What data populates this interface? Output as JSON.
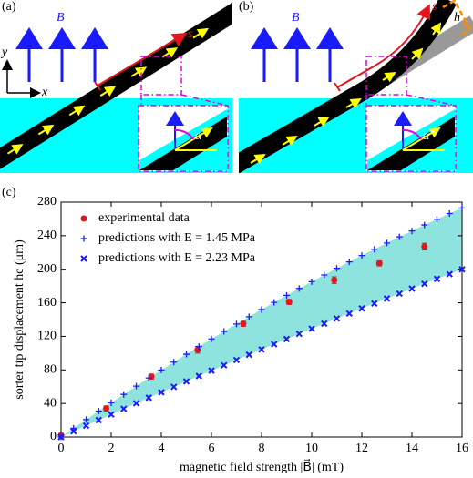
{
  "diagram": {
    "a": {
      "label": "(a)",
      "field": "B⃗",
      "axis_y": "y",
      "axis_x": "x",
      "arc": "s",
      "angle": "α"
    },
    "b": {
      "label": "(b)",
      "field": "B⃗",
      "arc": "s",
      "deflection": "h",
      "angle": "α̃"
    }
  },
  "chart_data": {
    "type": "scatter",
    "label": "(c)",
    "xlabel": "magnetic field strength |B⃗| (mT)",
    "ylabel": "sorter tip displacement hc (μm)",
    "xlim": [
      0,
      16
    ],
    "ylim": [
      0,
      280
    ],
    "xticks": [
      0,
      2,
      4,
      6,
      8,
      10,
      12,
      14,
      16
    ],
    "yticks": [
      0,
      40,
      80,
      120,
      160,
      200,
      240,
      280
    ],
    "band_color": "#8fe3df",
    "series": [
      {
        "name": "experimental data",
        "color": "#e8141c",
        "marker": "o",
        "x": [
          0,
          1.8,
          3.6,
          5.45,
          7.27,
          9.1,
          10.9,
          12.7,
          14.5
        ],
        "values": [
          2,
          34,
          72,
          104,
          135,
          161,
          187,
          207,
          227
        ],
        "errors": [
          2,
          3,
          3,
          4,
          3,
          3,
          4,
          3,
          4
        ]
      },
      {
        "name": "predictions with E = 1.45 MPa",
        "color": "#1a1aff",
        "marker": "+",
        "x": [
          0,
          0.5,
          1,
          1.5,
          2,
          2.5,
          3,
          3.5,
          4,
          4.5,
          5,
          5.5,
          6,
          6.5,
          7,
          7.5,
          8,
          8.5,
          9,
          9.5,
          10,
          10.5,
          11,
          11.5,
          12,
          12.5,
          13,
          13.5,
          14,
          14.5,
          15,
          15.5,
          16
        ],
        "values": [
          0,
          10.4,
          20.7,
          30.9,
          40.9,
          50.8,
          60.6,
          70.3,
          79.9,
          89.3,
          98.7,
          107.9,
          116.9,
          125.9,
          134.7,
          143.4,
          152.0,
          160.5,
          168.9,
          177.1,
          185.2,
          193.2,
          201.1,
          208.8,
          216.4,
          223.9,
          231.3,
          238.6,
          245.7,
          252.8,
          259.7,
          266.4,
          273.1
        ]
      },
      {
        "name": "predictions with E = 2.23 MPa",
        "color": "#1a1aff",
        "marker": "x",
        "x": [
          0,
          0.5,
          1,
          1.5,
          2,
          2.5,
          3,
          3.5,
          4,
          4.5,
          5,
          5.5,
          6,
          6.5,
          7,
          7.5,
          8,
          8.5,
          9,
          9.5,
          10,
          10.5,
          11,
          11.5,
          12,
          12.5,
          13,
          13.5,
          14,
          14.5,
          15,
          15.5,
          16
        ],
        "values": [
          0,
          6.8,
          13.5,
          20.2,
          26.9,
          33.6,
          40.2,
          46.8,
          53.3,
          59.8,
          66.3,
          72.7,
          79.1,
          85.5,
          91.8,
          98.1,
          104.4,
          110.6,
          116.8,
          123.0,
          129.1,
          135.2,
          141.3,
          147.3,
          153.3,
          159.2,
          165.1,
          171.0,
          176.9,
          182.7,
          188.5,
          194.2,
          199.9
        ]
      }
    ]
  }
}
